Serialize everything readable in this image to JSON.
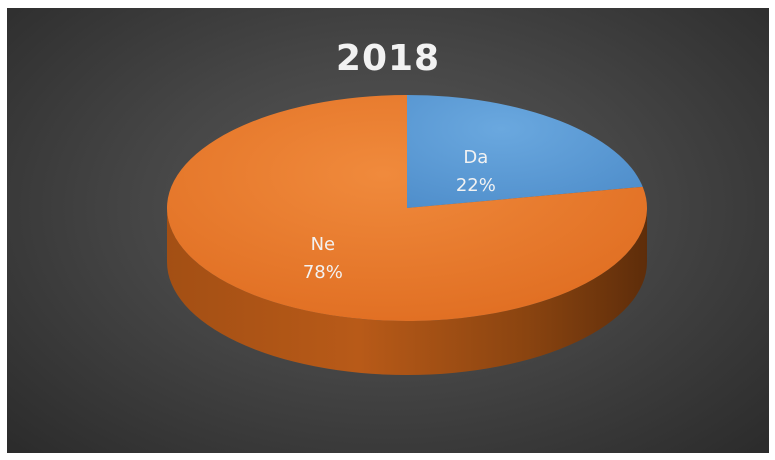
{
  "chart_data": {
    "type": "pie",
    "title": "2018",
    "slices": [
      {
        "label": "Da",
        "value": 22,
        "percent_label": "22%",
        "color": "#5B9BD5"
      },
      {
        "label": "Ne",
        "value": 78,
        "percent_label": "78%",
        "color": "#ED7D31"
      }
    ],
    "legend": "none",
    "style": "3d"
  }
}
